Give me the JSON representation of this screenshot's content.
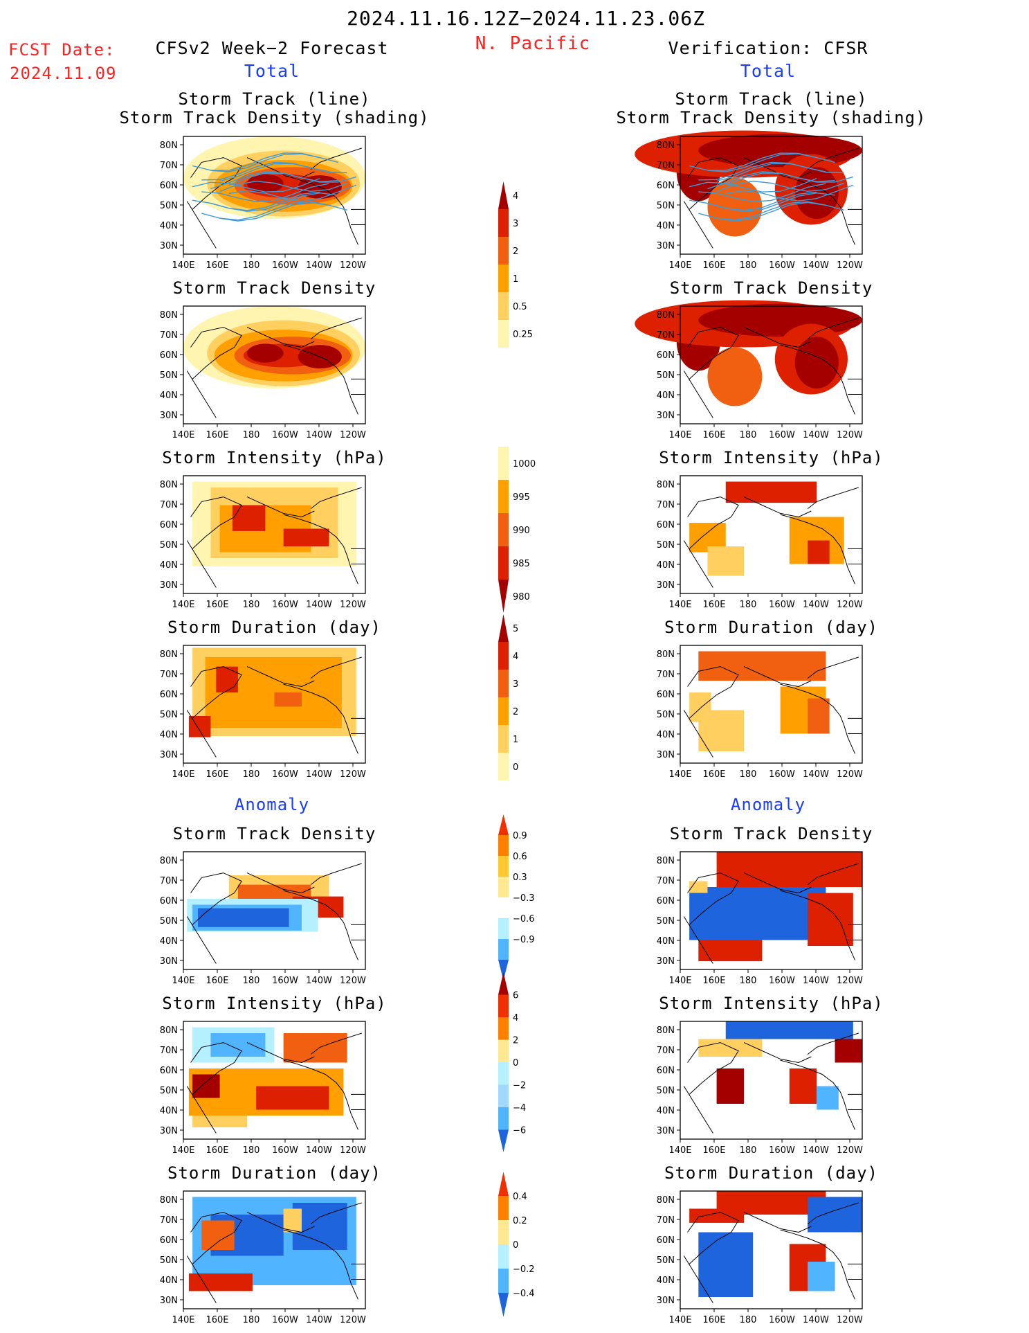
{
  "header": {
    "period": "2024.11.16.12Z−2024.11.23.06Z",
    "region": "N. Pacific",
    "fcst_label": "FCST Date:",
    "fcst_date": "2024.11.09",
    "left_column_title": "CFSv2 Week−2 Forecast",
    "right_column_title": "Verification: CFSR",
    "total_label": "Total",
    "anomaly_label": "Anomaly"
  },
  "panel_titles": {
    "track_line_1": "Storm Track (line)",
    "track_line_2": "Storm Track Density (shading)",
    "density": "Storm Track Density",
    "intensity": "Storm Intensity (hPa)",
    "duration": "Storm Duration (day)"
  },
  "axes": {
    "lon_ticks": [
      "140E",
      "160E",
      "180",
      "160W",
      "140W",
      "120W"
    ],
    "lat_ticks": [
      "80N",
      "70N",
      "60N",
      "50N",
      "40N",
      "30N"
    ]
  },
  "colorbars": {
    "density_total": {
      "labels": [
        "4",
        "3",
        "2",
        "1",
        "0.5",
        "0.25"
      ],
      "colors": [
        "#a50000",
        "#dc2000",
        "#f06010",
        "#ffa000",
        "#ffd060",
        "#fff5b0"
      ]
    },
    "intensity_total": {
      "labels": [
        "1000",
        "995",
        "990",
        "985",
        "980"
      ],
      "colors": [
        "#fff5b0",
        "#ffa000",
        "#f06010",
        "#dc2000",
        "#a50000"
      ]
    },
    "duration_total": {
      "labels": [
        "5",
        "4",
        "3",
        "2",
        "1",
        "0"
      ],
      "colors": [
        "#a50000",
        "#dc2000",
        "#f06010",
        "#ffa000",
        "#ffd060",
        "#fff5b0"
      ]
    },
    "density_anom": {
      "labels": [
        "0.9",
        "0.6",
        "0.3",
        "−0.3",
        "−0.6",
        "−0.9"
      ],
      "colors": [
        "#f03000",
        "#ff8000",
        "#ffc830",
        "#ffe890",
        "#ffffff",
        "#b4f0ff",
        "#50b4ff",
        "#1e64dc"
      ]
    },
    "intensity_anom": {
      "labels": [
        "6",
        "4",
        "2",
        "0",
        "−2",
        "−4",
        "−6"
      ],
      "colors": [
        "#a50000",
        "#f03000",
        "#ff8000",
        "#ffe890",
        "#b4f0ff",
        "#a0d8ff",
        "#50b4ff",
        "#1e64dc"
      ]
    },
    "duration_anom": {
      "labels": [
        "0.4",
        "0.2",
        "0",
        "−0.2",
        "−0.4"
      ],
      "colors": [
        "#f03000",
        "#ff8000",
        "#ffe890",
        "#b4f0ff",
        "#50b4ff",
        "#1e64dc"
      ]
    }
  },
  "palette": {
    "ocean": "#ffffff",
    "coast": "#000000",
    "track": "#3c9bd8",
    "warm": [
      "#fff5b0",
      "#ffd060",
      "#ffa000",
      "#f06010",
      "#dc2000",
      "#a50000"
    ],
    "cool": [
      "#b4f0ff",
      "#50b4ff",
      "#1e64dc"
    ]
  }
}
